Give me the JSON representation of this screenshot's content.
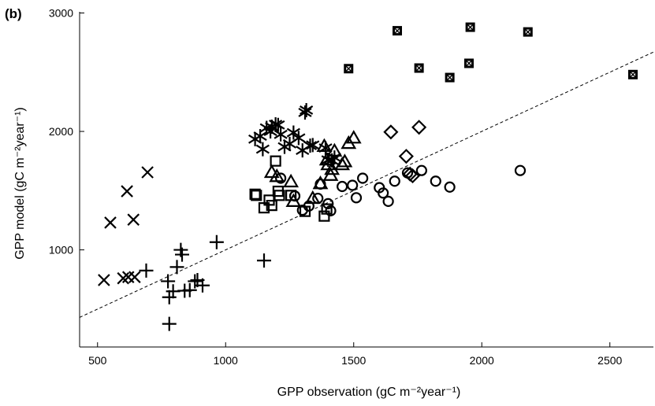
{
  "chart_data": {
    "type": "scatter",
    "panel_label": "(b)",
    "xlabel": "GPP observation (gC m⁻²year⁻¹)",
    "ylabel": "GPP model (gC m⁻²year⁻¹)",
    "xlim": [
      430,
      2670
    ],
    "ylim": [
      180,
      3010
    ],
    "xticks": [
      500,
      1000,
      1500,
      2000,
      2500
    ],
    "yticks": [
      1000,
      2000,
      3000
    ],
    "reference_line": {
      "style": "dashed",
      "points": [
        [
          430,
          430
        ],
        [
          2670,
          2670
        ]
      ]
    },
    "grid": false,
    "series": [
      {
        "marker": "x",
        "points": [
          [
            525,
            745
          ],
          [
            550,
            1230
          ],
          [
            600,
            760
          ],
          [
            615,
            1495
          ],
          [
            620,
            770
          ],
          [
            640,
            1255
          ],
          [
            645,
            770
          ],
          [
            695,
            1655
          ]
        ]
      },
      {
        "marker": "plus",
        "points": [
          [
            690,
            825
          ],
          [
            775,
            735
          ],
          [
            780,
            600
          ],
          [
            780,
            375
          ],
          [
            795,
            650
          ],
          [
            810,
            855
          ],
          [
            825,
            1000
          ],
          [
            830,
            960
          ],
          [
            840,
            655
          ],
          [
            860,
            660
          ],
          [
            880,
            735
          ],
          [
            890,
            745
          ],
          [
            910,
            700
          ],
          [
            965,
            1065
          ],
          [
            1150,
            910
          ]
        ]
      },
      {
        "marker": "square",
        "points": [
          [
            1115,
            1470
          ],
          [
            1120,
            1460
          ],
          [
            1150,
            1355
          ],
          [
            1170,
            1420
          ],
          [
            1180,
            1375
          ],
          [
            1195,
            1750
          ],
          [
            1205,
            1495
          ],
          [
            1210,
            1460
          ],
          [
            1255,
            1460
          ],
          [
            1310,
            1325
          ],
          [
            1385,
            1285
          ],
          [
            1395,
            1345
          ]
        ]
      },
      {
        "marker": "circle",
        "points": [
          [
            1215,
            1605
          ],
          [
            1270,
            1455
          ],
          [
            1300,
            1335
          ],
          [
            1325,
            1370
          ],
          [
            1360,
            1435
          ],
          [
            1370,
            1555
          ],
          [
            1400,
            1390
          ],
          [
            1410,
            1330
          ],
          [
            1455,
            1535
          ],
          [
            1495,
            1545
          ],
          [
            1510,
            1440
          ],
          [
            1535,
            1605
          ],
          [
            1600,
            1525
          ],
          [
            1615,
            1480
          ],
          [
            1635,
            1410
          ],
          [
            1660,
            1580
          ],
          [
            1710,
            1650
          ],
          [
            1765,
            1670
          ],
          [
            1820,
            1580
          ],
          [
            1875,
            1530
          ],
          [
            2150,
            1670
          ]
        ]
      },
      {
        "marker": "triangle",
        "points": [
          [
            1180,
            1655
          ],
          [
            1200,
            1620
          ],
          [
            1255,
            1575
          ],
          [
            1265,
            1410
          ],
          [
            1340,
            1435
          ],
          [
            1370,
            1560
          ],
          [
            1385,
            1875
          ],
          [
            1395,
            1760
          ],
          [
            1400,
            1720
          ],
          [
            1410,
            1630
          ],
          [
            1415,
            1680
          ],
          [
            1425,
            1835
          ],
          [
            1455,
            1720
          ],
          [
            1465,
            1745
          ],
          [
            1480,
            1900
          ],
          [
            1500,
            1945
          ]
        ]
      },
      {
        "marker": "diamond",
        "points": [
          [
            1645,
            1995
          ],
          [
            1705,
            1790
          ],
          [
            1720,
            1640
          ],
          [
            1730,
            1625
          ],
          [
            1755,
            2035
          ]
        ]
      },
      {
        "marker": "asterisk",
        "points": [
          [
            1115,
            1935
          ],
          [
            1135,
            1960
          ],
          [
            1145,
            1850
          ],
          [
            1160,
            2030
          ],
          [
            1175,
            2000
          ],
          [
            1180,
            2040
          ],
          [
            1195,
            2060
          ],
          [
            1205,
            2055
          ],
          [
            1215,
            1975
          ],
          [
            1230,
            1870
          ],
          [
            1250,
            1895
          ],
          [
            1265,
            1990
          ],
          [
            1285,
            1945
          ],
          [
            1300,
            1840
          ],
          [
            1310,
            2160
          ],
          [
            1315,
            2180
          ],
          [
            1330,
            1880
          ],
          [
            1340,
            1885
          ],
          [
            1390,
            1860
          ],
          [
            1400,
            1760
          ],
          [
            1415,
            1755
          ],
          [
            1425,
            1780
          ]
        ]
      },
      {
        "marker": "boxed-x",
        "points": [
          [
            1480,
            2530
          ],
          [
            1670,
            2850
          ],
          [
            1755,
            2535
          ],
          [
            1875,
            2455
          ],
          [
            1950,
            2575
          ],
          [
            1955,
            2880
          ],
          [
            2180,
            2840
          ],
          [
            2590,
            2480
          ]
        ]
      }
    ]
  }
}
